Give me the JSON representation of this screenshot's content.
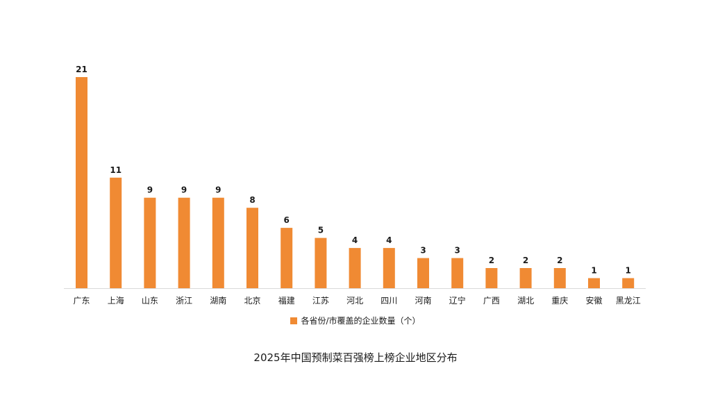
{
  "chart_data": {
    "type": "bar",
    "title": "2025年中国预制菜百强榜上榜企业地区分布",
    "categories": [
      "广东",
      "上海",
      "山东",
      "浙江",
      "湖南",
      "北京",
      "福建",
      "江苏",
      "河北",
      "四川",
      "河南",
      "辽宁",
      "广西",
      "湖北",
      "重庆",
      "安徽",
      "黑龙江"
    ],
    "series": [
      {
        "name": "各省份/市覆盖的企业数量（个）",
        "values": [
          21,
          11,
          9,
          9,
          9,
          8,
          6,
          5,
          4,
          4,
          3,
          3,
          2,
          2,
          2,
          1,
          1
        ]
      }
    ],
    "xlabel": "",
    "ylabel": "",
    "ylim": [
      0,
      21
    ],
    "grid": false,
    "legend_position": "bottom",
    "data_labels": true,
    "colors": {
      "bar": "#f08a33",
      "baseline": "#d9d9d9"
    }
  }
}
